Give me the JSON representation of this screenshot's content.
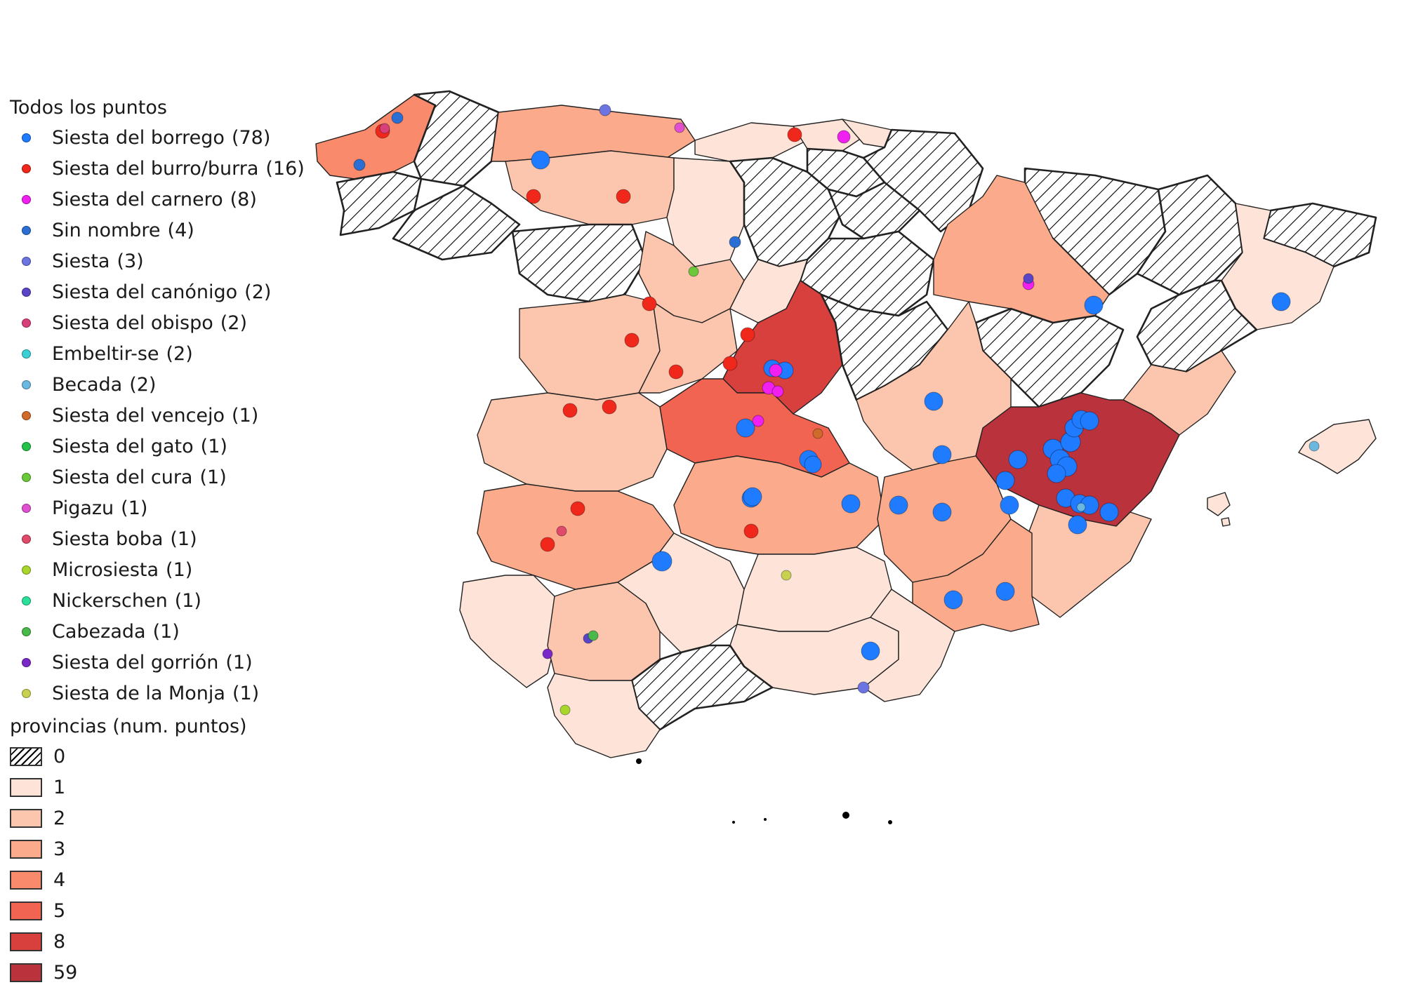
{
  "legend": {
    "points_title": "Todos los puntos",
    "points": [
      {
        "label": "Siesta del borrego",
        "count": "(78)",
        "color": "#1f7bff"
      },
      {
        "label": "Siesta del burro/burra",
        "count": "(16)",
        "color": "#f0281c"
      },
      {
        "label": "Siesta del carnero",
        "count": "(8)",
        "color": "#f020f0"
      },
      {
        "label": "Sin nombre",
        "count": "(4)",
        "color": "#2c6fd4"
      },
      {
        "label": "Siesta",
        "count": "(3)",
        "color": "#6b74e0"
      },
      {
        "label": "Siesta del canónigo",
        "count": "(2)",
        "color": "#5a45c9"
      },
      {
        "label": "Siesta del obispo",
        "count": "(2)",
        "color": "#d8407a"
      },
      {
        "label": "Embeltir-se",
        "count": "(2)",
        "color": "#3ad0d6"
      },
      {
        "label": "Becada",
        "count": "(2)",
        "color": "#6ab8e0"
      },
      {
        "label": "Siesta del vencejo",
        "count": "(1)",
        "color": "#d06a2a"
      },
      {
        "label": "Siesta del gato",
        "count": "(1)",
        "color": "#24c24a"
      },
      {
        "label": "Siesta del cura",
        "count": "(1)",
        "color": "#6ac83a"
      },
      {
        "label": "Pigazu",
        "count": "(1)",
        "color": "#e050d0"
      },
      {
        "label": "Siesta boba",
        "count": "(1)",
        "color": "#e04a6a"
      },
      {
        "label": "Microsiesta",
        "count": "(1)",
        "color": "#a8d62a"
      },
      {
        "label": "Nickerschen",
        "count": "(1)",
        "color": "#2ae09a"
      },
      {
        "label": "Cabezada",
        "count": "(1)",
        "color": "#4ab84a"
      },
      {
        "label": "Siesta del gorrión",
        "count": "(1)",
        "color": "#7a28c8"
      },
      {
        "label": "Siesta de la Monja",
        "count": "(1)",
        "color": "#c8d050"
      }
    ],
    "provinces_title": "provincias (num. puntos)",
    "classes": [
      {
        "label": "0",
        "color": "hatch"
      },
      {
        "label": "1",
        "color": "#fde3d8"
      },
      {
        "label": "2",
        "color": "#fcc6ae"
      },
      {
        "label": "3",
        "color": "#fbaa8b"
      },
      {
        "label": "4",
        "color": "#f98a6c"
      },
      {
        "label": "5",
        "color": "#f26452"
      },
      {
        "label": "8",
        "color": "#d8403e"
      },
      {
        "label": "59",
        "color": "#b9323c"
      }
    ]
  }
}
